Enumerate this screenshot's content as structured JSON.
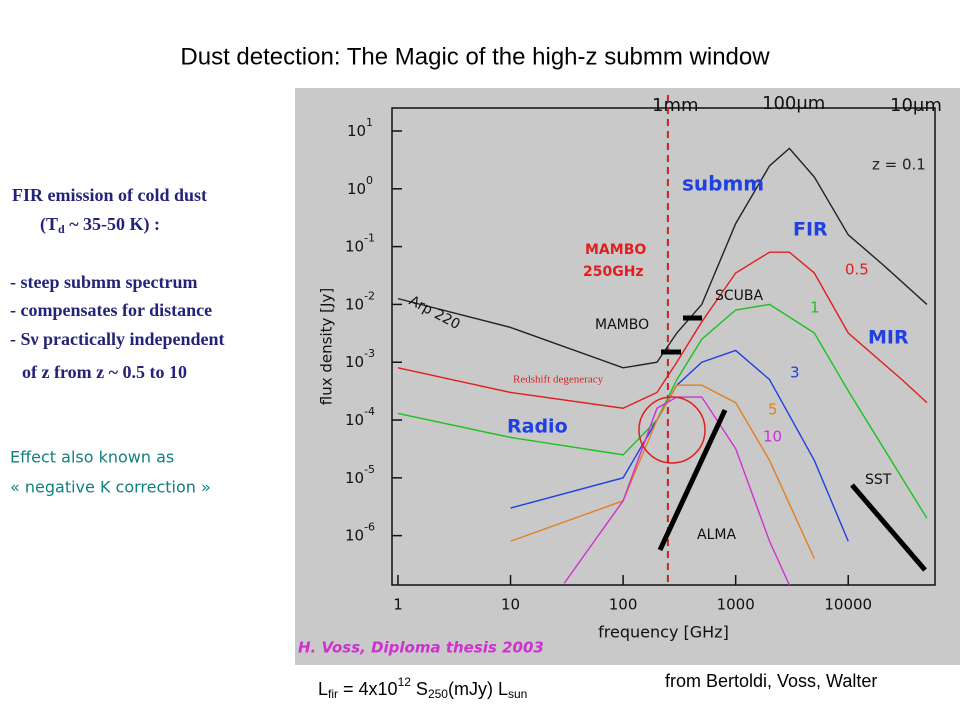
{
  "slide": {
    "title": "Dust detection: The Magic of the high-z submm window",
    "fir_heading": "FIR emission of cold dust",
    "td_line": [
      "(T",
      "d",
      " ~ 35-50 K) :"
    ],
    "bullets": [
      "- steep submm spectrum",
      "- compensates for distance",
      "- Sν  practically independent",
      "of z from z ~ 0.5 to 10"
    ],
    "effect": [
      "Effect also known as",
      "« negative K correction »"
    ],
    "formula": [
      "L",
      "fir",
      " = 4x10",
      "12",
      "  S",
      "250",
      "(mJy) L",
      "sun"
    ],
    "credit": "from Bertoldi, Voss, Walter"
  },
  "chart_data": {
    "type": "line",
    "xlabel": "frequency [GHz]",
    "ylabel": "flux density [Jy]",
    "log_x": true,
    "log_y": true,
    "xlim": [
      0.885,
      59000
    ],
    "ylim": [
      1.4e-07,
      25
    ],
    "xticks": [
      1,
      10,
      100,
      1000,
      10000
    ],
    "yticks": [
      {
        "value": 10,
        "label": "10",
        "exp": "1"
      },
      {
        "value": 1,
        "label": "10",
        "exp": "0"
      },
      {
        "value": 0.1,
        "label": "10",
        "exp": "-1"
      },
      {
        "value": 0.01,
        "label": "10",
        "exp": "-2"
      },
      {
        "value": 0.001,
        "label": "10",
        "exp": "-3"
      },
      {
        "value": 0.0001,
        "label": "10",
        "exp": "-4"
      },
      {
        "value": 1e-05,
        "label": "10",
        "exp": "-5"
      },
      {
        "value": 1e-06,
        "label": "10",
        "exp": "-6"
      }
    ],
    "mambo_frequency": 250,
    "series": [
      {
        "name": "z = 0.1",
        "color": "#222222",
        "x": [
          1,
          10,
          100,
          200,
          300,
          500,
          1000,
          2000,
          3000,
          5000,
          10000,
          20000,
          50000
        ],
        "values": [
          0.0126,
          0.004,
          0.0008,
          0.001,
          0.0032,
          0.01,
          0.25,
          2.5,
          5,
          1.6,
          0.16,
          0.05,
          0.01
        ]
      },
      {
        "name": "0.5",
        "color": "#e02020",
        "x": [
          1,
          10,
          100,
          200,
          300,
          500,
          1000,
          2000,
          3000,
          5000,
          10000,
          30000,
          50000
        ],
        "values": [
          0.0008,
          0.0003,
          0.00016,
          0.0003,
          0.001,
          0.005,
          0.035,
          0.08,
          0.08,
          0.035,
          0.0032,
          0.0005,
          0.0002
        ]
      },
      {
        "name": "1",
        "color": "#20c020",
        "x": [
          1,
          10,
          100,
          200,
          300,
          500,
          1000,
          2000,
          5000,
          10000,
          30000,
          50000
        ],
        "values": [
          0.00013,
          5e-05,
          2.5e-05,
          0.0001,
          0.0005,
          0.0025,
          0.008,
          0.01,
          0.0032,
          0.00032,
          1e-05,
          2e-06
        ]
      },
      {
        "name": "3",
        "color": "#2040e0",
        "x": [
          10,
          100,
          200,
          300,
          500,
          1000,
          2000,
          5000,
          10000
        ],
        "values": [
          3e-06,
          1e-05,
          0.0001,
          0.0004,
          0.001,
          0.0016,
          0.0005,
          2e-05,
          8e-07
        ]
      },
      {
        "name": "5",
        "color": "#e08020",
        "x": [
          10,
          100,
          200,
          300,
          500,
          1000,
          2000,
          5000
        ],
        "values": [
          8e-07,
          4e-06,
          0.0001,
          0.0004,
          0.0004,
          0.0002,
          2e-05,
          4e-07
        ]
      },
      {
        "name": "10",
        "color": "#d030d0",
        "x": [
          30,
          100,
          200,
          300,
          500,
          1000,
          2000,
          3000
        ],
        "values": [
          1.5e-07,
          4e-06,
          0.00016,
          0.00025,
          0.00025,
          3.2e-05,
          8e-07,
          1.4e-07
        ]
      }
    ],
    "annotations": [
      {
        "text": "submm",
        "color": "#2040e0"
      },
      {
        "text": "FIR",
        "color": "#2040e0"
      },
      {
        "text": "MIR",
        "color": "#2040e0"
      },
      {
        "text": "Radio",
        "color": "#2040e0"
      },
      {
        "text": "MAMBO",
        "color": "#e02020"
      },
      {
        "text": "250GHz",
        "color": "#e02020"
      },
      {
        "text": "SCUBA",
        "color": "#111111"
      },
      {
        "text": "MAMBO",
        "color": "#111111"
      },
      {
        "text": "ALMA",
        "color": "#111111"
      },
      {
        "text": "SST",
        "color": "#111111"
      },
      {
        "text": "Arp 220",
        "color": "#111111"
      },
      {
        "text": "Redshift degeneracy",
        "color": "#e02020"
      },
      {
        "text": "1mm",
        "color": "#111111"
      },
      {
        "text": "100μm",
        "color": "#111111"
      },
      {
        "text": "10μm",
        "color": "#111111"
      },
      {
        "text": "H. Voss, Diploma thesis 2003",
        "color": "#d030d0"
      }
    ]
  }
}
